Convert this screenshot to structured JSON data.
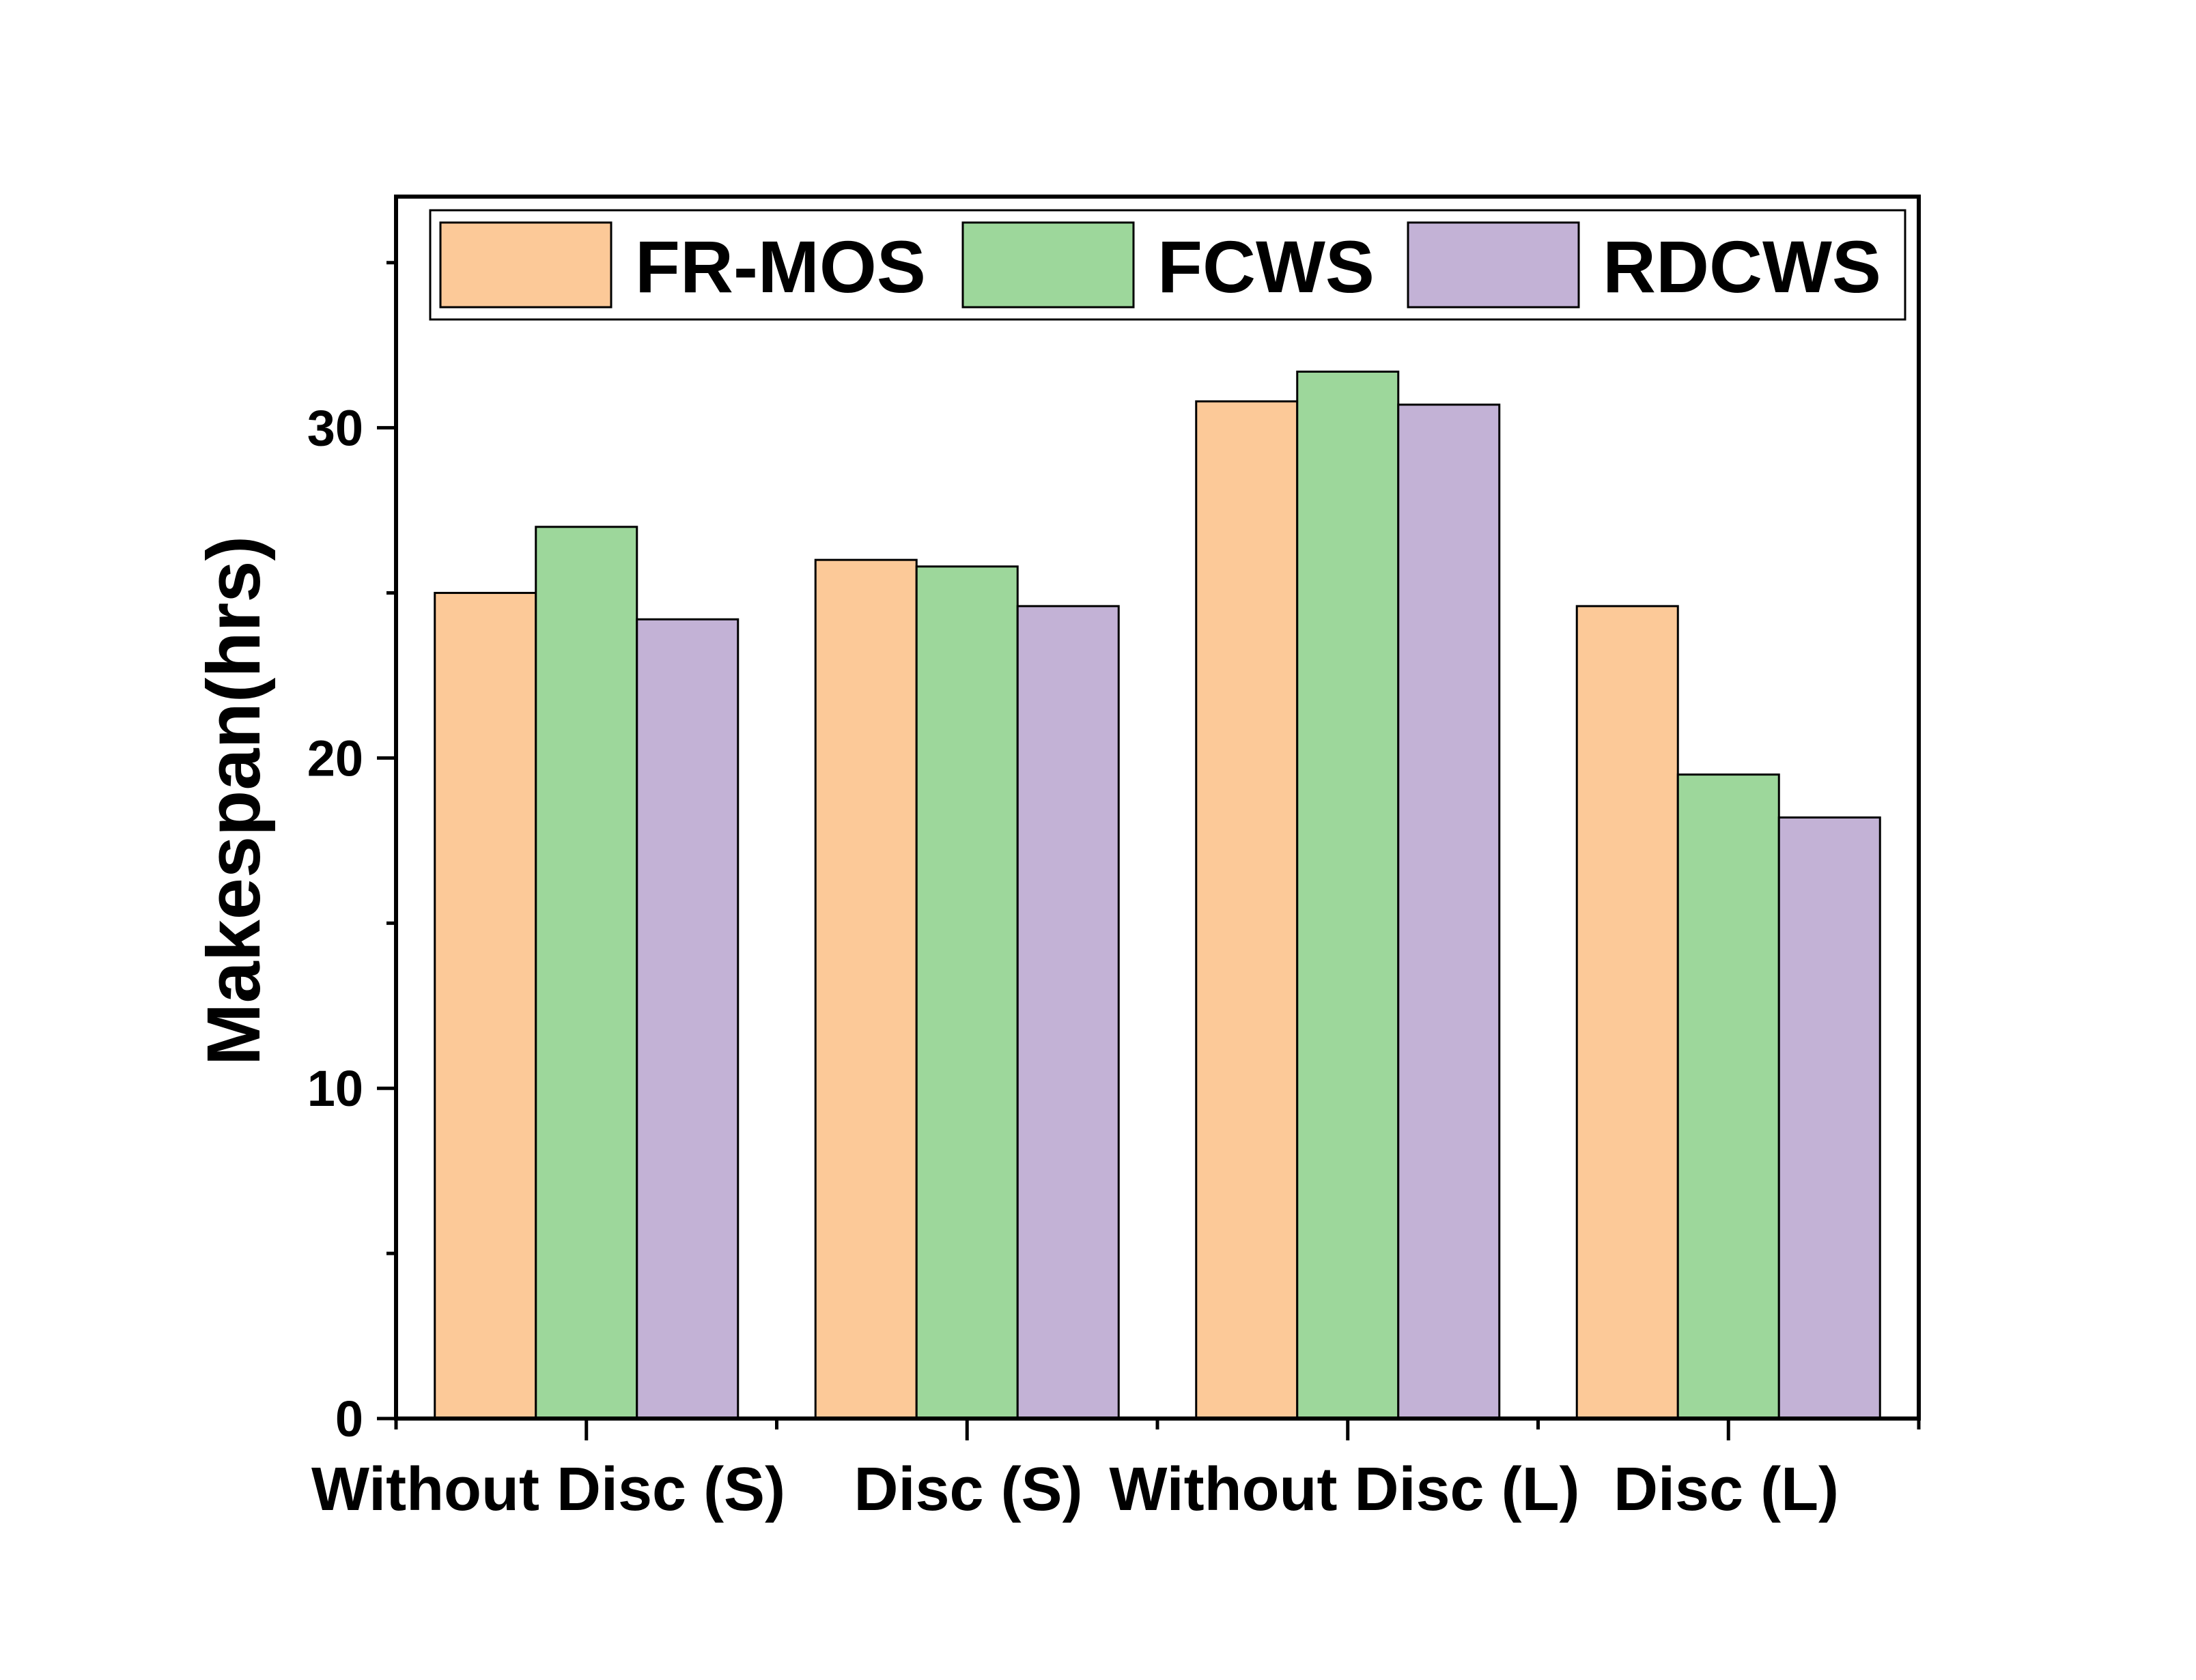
{
  "chart_data": {
    "type": "bar",
    "title": "",
    "xlabel": "",
    "ylabel": "Makespan(hrs)",
    "categories": [
      "Without Disc (S)",
      "Disc (S)",
      "Without Disc (L)",
      "Disc (L)"
    ],
    "series": [
      {
        "name": "FR-MOS",
        "color": "#FCC998",
        "values": [
          25.0,
          26.0,
          30.8,
          24.6
        ]
      },
      {
        "name": "FCWS",
        "color": "#9DD79B",
        "values": [
          27.0,
          25.8,
          31.7,
          19.5
        ]
      },
      {
        "name": "RDCWS",
        "color": "#C3B2D6",
        "values": [
          24.2,
          24.6,
          30.7,
          18.2
        ]
      }
    ],
    "ylim": [
      0,
      37
    ],
    "yticks": [
      0,
      10,
      20,
      30
    ],
    "yticks_minor": [
      5,
      15,
      25,
      35
    ],
    "grid": false,
    "legend_position": "top"
  }
}
